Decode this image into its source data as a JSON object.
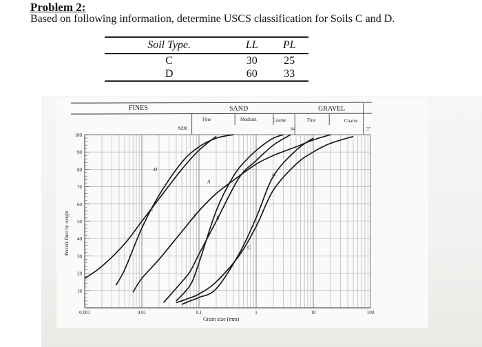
{
  "problem": {
    "title": "Problem 2:",
    "text": "Based on following information, determine USCS classification for Soils C and D."
  },
  "soil_table": {
    "headers": [
      "Soil Type.",
      "LL",
      "PL"
    ],
    "rows": [
      [
        "C",
        "30",
        "25"
      ],
      [
        "D",
        "60",
        "33"
      ]
    ]
  },
  "chart_data": {
    "type": "line",
    "xlabel": "Grain size (mm)",
    "ylabel": "Percent finer by weight",
    "x_scale": "log",
    "xlim": [
      0.001,
      100
    ],
    "ylim": [
      0,
      100
    ],
    "x_ticks": [
      "0.001",
      "0.01",
      "0.1",
      "1",
      "10",
      "100"
    ],
    "y_ticks": [
      "10",
      "20",
      "30",
      "40",
      "50",
      "60",
      "70",
      "80",
      "90",
      "100"
    ],
    "grid": true,
    "size_classes": {
      "fines": "FINES",
      "sand": "SAND",
      "sand_fine": "Fine",
      "sand_medium": "Medium",
      "sand_coarse": "Coarse",
      "gravel": "GRAVEL",
      "gravel_fine": "Fine",
      "gravel_coarse": "Coarse",
      "sieve_200": "#200",
      "sieve_4": "#4",
      "size_3in": "3\""
    },
    "series": [
      {
        "name": "A",
        "label_at": [
          0.14,
          72
        ],
        "x": [
          0.007,
          0.01,
          0.02,
          0.05,
          0.1,
          0.2,
          0.5,
          1,
          2,
          5,
          10,
          20
        ],
        "y": [
          9,
          17,
          28,
          44,
          56,
          66,
          76,
          83,
          88,
          93,
          97,
          100
        ]
      },
      {
        "name": "B",
        "label_at": [
          0.2,
          51
        ],
        "x": [
          0.024,
          0.05,
          0.07,
          0.1,
          0.2,
          0.5,
          1,
          2,
          4
        ],
        "y": [
          3,
          15,
          21,
          31,
          50,
          75,
          85,
          94,
          100
        ]
      },
      {
        "name": "C",
        "label_at": [
          0.7,
          34
        ],
        "x": [
          0.05,
          0.07,
          0.1,
          0.2,
          0.5,
          1,
          2,
          5,
          10
        ],
        "y": [
          2,
          4,
          6,
          11,
          31,
          52,
          76,
          91,
          98
        ]
      },
      {
        "name": "D",
        "label_at": [
          0.016,
          79
        ],
        "x": [
          0.0035,
          0.005,
          0.01,
          0.02,
          0.05,
          0.1,
          0.2,
          0.4
        ],
        "y": [
          13,
          22,
          46,
          65,
          84,
          93,
          98,
          100
        ]
      },
      {
        "name": "E",
        "label_at": [
          0.014,
          56
        ],
        "x": [
          0.001,
          0.002,
          0.005,
          0.01,
          0.02,
          0.05,
          0.1,
          0.2
        ],
        "y": [
          17,
          24,
          37,
          50,
          63,
          80,
          91,
          99
        ]
      },
      {
        "name": "F",
        "label_at": [
          0.08,
          52
        ],
        "x": [
          0.04,
          0.07,
          0.1,
          0.2,
          0.4,
          0.7,
          1.2,
          2,
          3
        ],
        "y": [
          4,
          13,
          26,
          56,
          76,
          86,
          93,
          98,
          100
        ]
      },
      {
        "name": "G",
        "label_at": [
          1.9,
          76
        ],
        "x": [
          0.04,
          0.06,
          0.1,
          0.2,
          0.5,
          1,
          2,
          5,
          10,
          20,
          50
        ],
        "y": [
          3,
          5,
          8,
          15,
          30,
          47,
          68,
          83,
          90,
          95,
          99
        ]
      }
    ]
  }
}
